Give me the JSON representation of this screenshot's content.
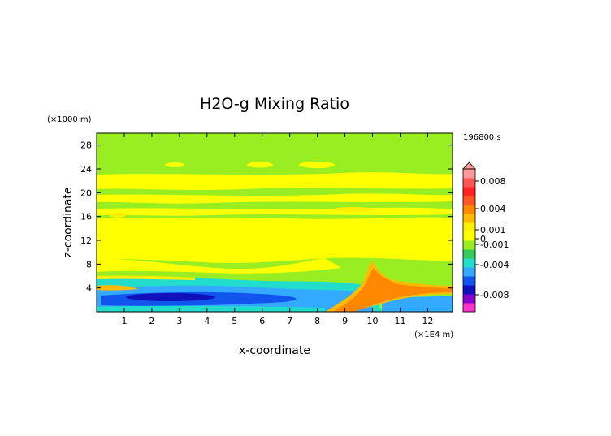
{
  "chart_data": {
    "type": "heatmap",
    "title": "H2O-g Mixing Ratio",
    "time_label": "196800 s",
    "xlabel": "x-coordinate",
    "ylabel": "z-coordinate",
    "x_unit": "(×1E4 m)",
    "y_unit": "(×1000 m)",
    "xlim": [
      0,
      12.9
    ],
    "ylim": [
      0,
      30
    ],
    "x_ticks": [
      "1",
      "2",
      "3",
      "4",
      "5",
      "6",
      "7",
      "8",
      "9",
      "10",
      "11",
      "12"
    ],
    "y_ticks": [
      "4",
      "8",
      "12",
      "16",
      "20",
      "24",
      "28"
    ],
    "colorbar": {
      "labels": [
        "0.008",
        "0.004",
        "0.001",
        "0",
        "-0.001",
        "-0.004",
        "-0.008"
      ],
      "levels": [
        -0.008,
        -0.004,
        -0.001,
        0,
        0.001,
        0.004,
        0.008
      ],
      "colors": [
        "#ff33cc",
        "#8800cc",
        "#1111bb",
        "#1155ee",
        "#33aaff",
        "#22ddcc",
        "#33cc55",
        "#99ee22",
        "#ffff00",
        "#ffee00",
        "#ffbb00",
        "#ff8800",
        "#ff5522",
        "#ff2222",
        "#ff5555",
        "#ff9999"
      ]
    },
    "regions": [
      {
        "name": "background",
        "value": 0.0
      },
      {
        "name": "upper-moist-band",
        "value": 0.0005,
        "x": [
          0,
          12.9
        ],
        "z": [
          20.5,
          23
        ]
      },
      {
        "name": "mid-moist-band",
        "value": 0.0005,
        "x": [
          0,
          12.9
        ],
        "z": [
          9,
          15.5
        ]
      },
      {
        "name": "low-dry-layer",
        "value": -0.002,
        "x": [
          0,
          10
        ],
        "z": [
          0.5,
          4
        ]
      },
      {
        "name": "dry-core",
        "value": -0.004,
        "x": [
          0.5,
          4.5
        ],
        "z": [
          1.5,
          3.5
        ]
      },
      {
        "name": "moist-plume",
        "value": 0.003,
        "x": [
          8.3,
          12.9
        ],
        "z": [
          0,
          7.5
        ]
      }
    ]
  }
}
